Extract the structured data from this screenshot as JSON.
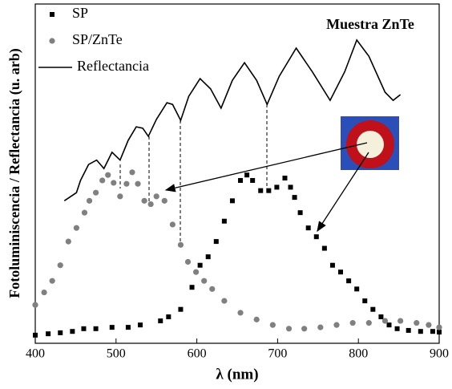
{
  "chart_data": {
    "type": "scatter",
    "annotation": "Muestra ZnTe",
    "x_label": "λ (nm)",
    "y_label": "Fotoluminiscencia / Reflectancia (u. arb)",
    "xlim": [
      400,
      900
    ],
    "xticks": [
      400,
      500,
      600,
      700,
      800,
      900
    ],
    "ylim": [
      0,
      100
    ],
    "legend": "upper left",
    "series": [
      {
        "name": "SP",
        "color": "#000000",
        "mode": "markers",
        "marker": "square",
        "x": [
          400,
          416,
          431,
          446,
          460,
          475,
          495,
          515,
          530,
          555,
          565,
          580,
          594,
          604,
          614,
          624,
          634,
          644,
          654,
          662,
          669,
          679,
          689,
          699,
          709,
          716,
          721,
          728,
          738,
          748,
          758,
          768,
          778,
          788,
          798,
          808,
          818,
          828,
          838,
          848,
          862,
          877,
          892,
          900
        ],
        "values": [
          2.4,
          2.8,
          3.1,
          3.5,
          4.3,
          4.3,
          4.7,
          4.7,
          5.4,
          6.6,
          7.8,
          10,
          16.5,
          23,
          25.5,
          30,
          36,
          42,
          48,
          49.6,
          48,
          45,
          45,
          46,
          48.7,
          46,
          43,
          38.5,
          34,
          31.4,
          28,
          23,
          21,
          18.4,
          16,
          12.5,
          10,
          7.8,
          5.4,
          4.3,
          3.8,
          3.5,
          3.5,
          3.3
        ]
      },
      {
        "name": "SP/ZnTe",
        "color": "#808080",
        "mode": "markers",
        "marker": "circle",
        "x": [
          400,
          411,
          421,
          431,
          441,
          451,
          461,
          467,
          475,
          483,
          490,
          497,
          505,
          513,
          520,
          527,
          535,
          543,
          550,
          560,
          570,
          580,
          589,
          599,
          609,
          619,
          634,
          654,
          674,
          694,
          714,
          733,
          753,
          773,
          793,
          813,
          833,
          852,
          872,
          887,
          900
        ],
        "values": [
          11.3,
          15,
          18.4,
          23,
          30,
          34,
          38.5,
          42,
          44.4,
          48,
          49.6,
          47.3,
          43.3,
          47,
          50.4,
          47,
          42,
          41,
          43.3,
          42,
          35,
          29,
          24,
          21,
          18.4,
          16,
          12.5,
          9,
          7,
          5.4,
          4.3,
          4.3,
          4.7,
          5.4,
          6,
          6,
          6.6,
          6.6,
          6,
          5.4,
          4.7
        ]
      },
      {
        "name": "Reflectancia",
        "color": "#000000",
        "mode": "line",
        "x": [
          436,
          451,
          456,
          466,
          476,
          485,
          495,
          505,
          515,
          525,
          533,
          540,
          550,
          563,
          570,
          580,
          590,
          604,
          617,
          630,
          644,
          659,
          674,
          687,
          702,
          723,
          743,
          765,
          783,
          798,
          813,
          833,
          843,
          852
        ],
        "values": [
          42,
          44.4,
          48,
          52.7,
          54,
          51.5,
          56.3,
          54,
          59.8,
          63.8,
          63.4,
          61,
          66,
          70.9,
          70.4,
          65.7,
          72.8,
          78,
          75,
          69.3,
          77.5,
          82.7,
          77.5,
          70.4,
          78.7,
          87,
          80,
          71.6,
          80,
          89.4,
          84.6,
          74,
          71.6,
          73.3
        ]
      }
    ]
  }
}
